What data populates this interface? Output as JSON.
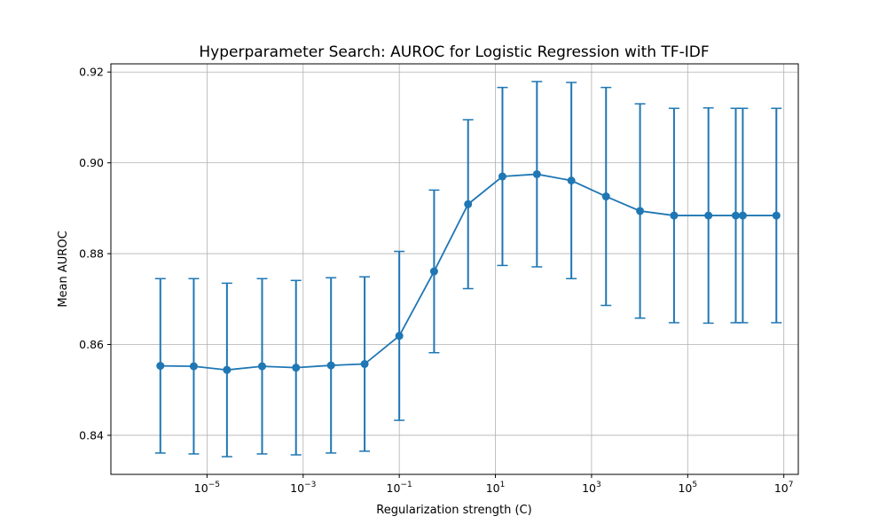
{
  "chart_data": {
    "type": "line",
    "title": "Hyperparameter Search: AUROC for Logistic Regression with TF-IDF",
    "xlabel": "Regularization strength (C)",
    "ylabel": "Mean AUROC",
    "xscale": "log",
    "xlim": [
      1e-07,
      20000000.0
    ],
    "ylim": [
      0.8314,
      0.9218
    ],
    "grid": true,
    "xticks": [
      {
        "value": 1e-05,
        "base": "10",
        "exp": "−5"
      },
      {
        "value": 0.001,
        "base": "10",
        "exp": "−3"
      },
      {
        "value": 0.1,
        "base": "10",
        "exp": "−1"
      },
      {
        "value": 10.0,
        "base": "10",
        "exp": "1"
      },
      {
        "value": 1000.0,
        "base": "10",
        "exp": "3"
      },
      {
        "value": 100000.0,
        "base": "10",
        "exp": "5"
      },
      {
        "value": 10000000.0,
        "base": "10",
        "exp": "7"
      }
    ],
    "yticks": [
      0.84,
      0.86,
      0.88,
      0.9,
      0.92
    ],
    "ytick_labels": [
      "0.84",
      "0.86",
      "0.88",
      "0.90",
      "0.92"
    ],
    "color": "#1f77b4",
    "series": [
      {
        "x": [
          1.07e-06,
          5.3e-06,
          2.6e-05,
          0.00014,
          0.00071,
          0.0038,
          0.019,
          0.1,
          0.53,
          2.7,
          14,
          73,
          380,
          2000,
          10200,
          52000,
          270000,
          1000000,
          1400000,
          7000000
        ],
        "y": [
          0.8553,
          0.8552,
          0.8544,
          0.8552,
          0.8549,
          0.8554,
          0.8557,
          0.8619,
          0.8761,
          0.8909,
          0.897,
          0.8975,
          0.8961,
          0.8926,
          0.8894,
          0.8884,
          0.8884,
          0.8884,
          0.8884,
          0.8884
        ],
        "yerr": [
          0.0192,
          0.0193,
          0.0191,
          0.0193,
          0.0192,
          0.0193,
          0.0192,
          0.0186,
          0.0179,
          0.0186,
          0.0196,
          0.0204,
          0.0216,
          0.024,
          0.0236,
          0.0236,
          0.0237,
          0.0236,
          0.0236,
          0.0236
        ]
      }
    ]
  }
}
